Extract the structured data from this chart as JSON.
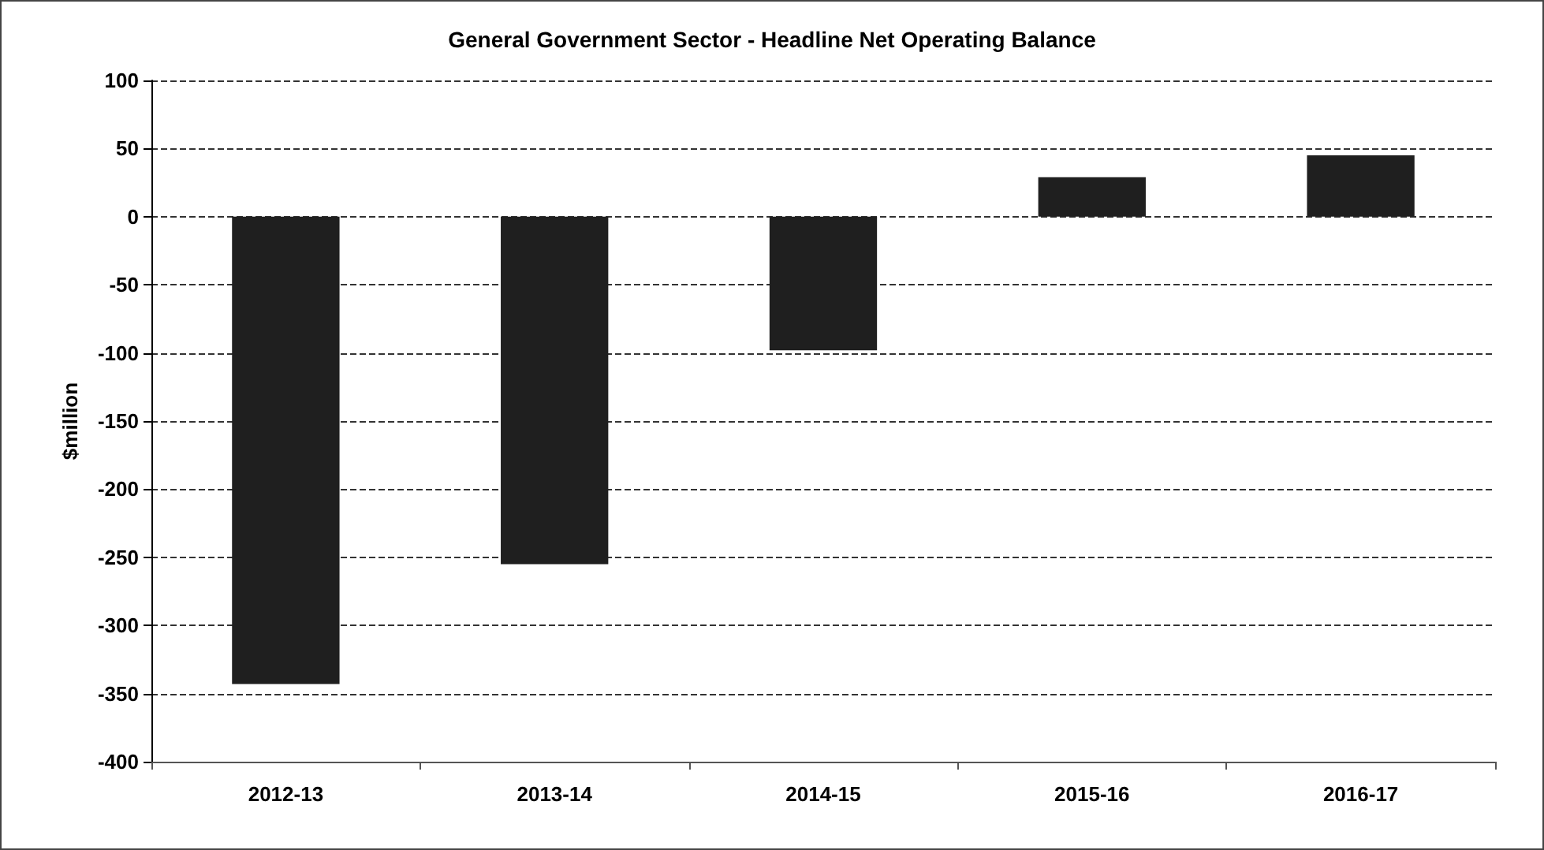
{
  "chart_data": {
    "type": "bar",
    "title": "General Government Sector - Headline Net Operating Balance",
    "ylabel": "$million",
    "categories": [
      "2012-13",
      "2013-14",
      "2014-15",
      "2015-16",
      "2016-17"
    ],
    "values": [
      -343,
      -255,
      -98,
      29,
      45
    ],
    "color": "#1f1f1f",
    "ylim": [
      -400,
      100
    ],
    "yticks": [
      -400,
      -350,
      -300,
      -250,
      -200,
      -150,
      -100,
      -50,
      0,
      50,
      100
    ],
    "grid": "y"
  }
}
